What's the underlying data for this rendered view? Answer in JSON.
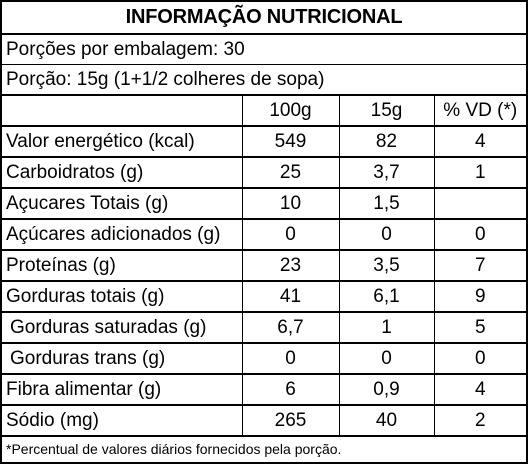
{
  "title": "INFORMAÇÃO NUTRICIONAL",
  "servings_per_package": "Porções por embalagem: 30",
  "serving_size": "Porção: 15g (1+1/2 colheres de sopa)",
  "columns": [
    "100g",
    "15g",
    "% VD (*)"
  ],
  "rows": [
    {
      "label": "Valor energético (kcal)",
      "v100": "549",
      "v15": "82",
      "vd": "4"
    },
    {
      "label": "Carboidratos (g)",
      "v100": "25",
      "v15": "3,7",
      "vd": "1"
    },
    {
      "label": "Açucares Totais (g)",
      "v100": "10",
      "v15": "1,5",
      "vd": ""
    },
    {
      "label": "Açúcares adicionados (g)",
      "v100": "0",
      "v15": "0",
      "vd": "0"
    },
    {
      "label": "Proteínas (g)",
      "v100": "23",
      "v15": "3,5",
      "vd": "7"
    },
    {
      "label": "Gorduras totais (g)",
      "v100": "41",
      "v15": "6,1",
      "vd": "9"
    },
    {
      "label": "Gorduras saturadas (g)",
      "v100": "6,7",
      "v15": "1",
      "vd": "5"
    },
    {
      "label": "Gorduras trans (g)",
      "v100": "0",
      "v15": "0",
      "vd": "0"
    },
    {
      "label": "Fibra alimentar (g)",
      "v100": "6",
      "v15": "0,9",
      "vd": "4"
    },
    {
      "label": "Sódio (mg)",
      "v100": "265",
      "v15": "40",
      "vd": "2"
    }
  ],
  "footnote": "*Percentual de valores diários fornecidos pela porção."
}
